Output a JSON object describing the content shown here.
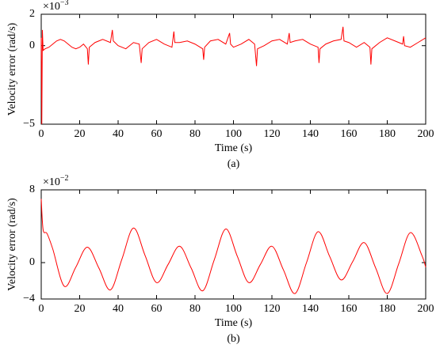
{
  "chart_data": [
    {
      "type": "line",
      "caption": "(a)",
      "xlabel": "Time (s)",
      "ylabel": "Velocity error (rad/s)",
      "multiplier": {
        "base": "×10",
        "exponent": "−3"
      },
      "xlim": [
        0,
        200
      ],
      "xticks": [
        0,
        20,
        40,
        60,
        80,
        100,
        120,
        140,
        160,
        180,
        200
      ],
      "ylim": [
        -5,
        2
      ],
      "yticks": [
        -5,
        0,
        2
      ],
      "grid": false,
      "series": [
        {
          "color": "#ff0000",
          "x": [
            0,
            0.3,
            0.6,
            1,
            2,
            4,
            6,
            8,
            10,
            12,
            14,
            16,
            18,
            20,
            22,
            24,
            24.5,
            25,
            28,
            32,
            36,
            37,
            37.5,
            40,
            44,
            48,
            51,
            52,
            52.5,
            56,
            60,
            64,
            68,
            69,
            69.5,
            72,
            76,
            80,
            84,
            84.5,
            85,
            88,
            92,
            96,
            98,
            98.5,
            100,
            104,
            108,
            111,
            112,
            112.5,
            116,
            120,
            124,
            128,
            129,
            129.5,
            132,
            136,
            140,
            144,
            144.5,
            145,
            148,
            152,
            156,
            157,
            157.5,
            160,
            164,
            168,
            171,
            171.5,
            172,
            176,
            180,
            184,
            188,
            188.5,
            189,
            192,
            196,
            200
          ],
          "values": [
            0.5,
            -5,
            1,
            -0.3,
            -0.2,
            -0.1,
            0.1,
            0.3,
            0.4,
            0.3,
            0.1,
            -0.1,
            -0.2,
            -0.1,
            0.1,
            -0.2,
            -1.2,
            -0.1,
            0.2,
            0.4,
            0.2,
            1.0,
            0.3,
            0.0,
            -0.2,
            0.2,
            0.1,
            -1.1,
            -0.2,
            0.2,
            0.4,
            0.1,
            -0.1,
            0.9,
            0.2,
            0.2,
            0.3,
            0.1,
            -0.2,
            -0.9,
            -0.1,
            0.3,
            0.4,
            0.1,
            0.8,
            0.1,
            -0.1,
            0.1,
            0.4,
            0.1,
            -1.3,
            -0.2,
            0.0,
            0.3,
            0.4,
            0.1,
            0.8,
            0.2,
            0.3,
            0.4,
            0.1,
            -0.1,
            -1.1,
            -0.2,
            0.1,
            0.3,
            0.4,
            1.2,
            0.3,
            0.2,
            -0.1,
            0.2,
            -0.1,
            -1.2,
            -0.2,
            0.2,
            0.5,
            0.3,
            0.1,
            0.6,
            0.0,
            -0.1,
            0.2,
            0.5
          ]
        }
      ]
    },
    {
      "type": "line",
      "caption": "(b)",
      "xlabel": "Time (s)",
      "ylabel": "Velocity error (rad/s)",
      "multiplier": {
        "base": "×10",
        "exponent": "−2"
      },
      "xlim": [
        0,
        200
      ],
      "xticks": [
        0,
        20,
        40,
        60,
        80,
        100,
        120,
        140,
        160,
        180,
        200
      ],
      "ylim": [
        -4,
        8
      ],
      "yticks": [
        -4,
        0,
        8
      ],
      "grid": false,
      "series": [
        {
          "color": "#ff0000",
          "x": [
            0,
            1,
            3,
            6,
            12,
            18,
            24,
            30,
            36,
            42,
            48,
            54,
            60,
            66,
            72,
            78,
            84,
            90,
            96,
            102,
            108,
            114,
            120,
            126,
            132,
            138,
            144,
            150,
            156,
            162,
            168,
            174,
            180,
            186,
            192,
            198,
            200
          ],
          "values": [
            7,
            3.6,
            3.2,
            1.5,
            -2.6,
            -0.5,
            1.7,
            -0.6,
            -3.0,
            0.4,
            3.8,
            0.8,
            -2.2,
            -0.2,
            1.8,
            -0.6,
            -3.1,
            0.3,
            3.7,
            0.7,
            -2.2,
            -0.2,
            1.8,
            -0.8,
            -3.4,
            0,
            3.4,
            0.7,
            -1.9,
            0.1,
            2.2,
            -0.6,
            -3.4,
            -0.1,
            3.3,
            0.8,
            -0.5
          ]
        }
      ]
    }
  ]
}
